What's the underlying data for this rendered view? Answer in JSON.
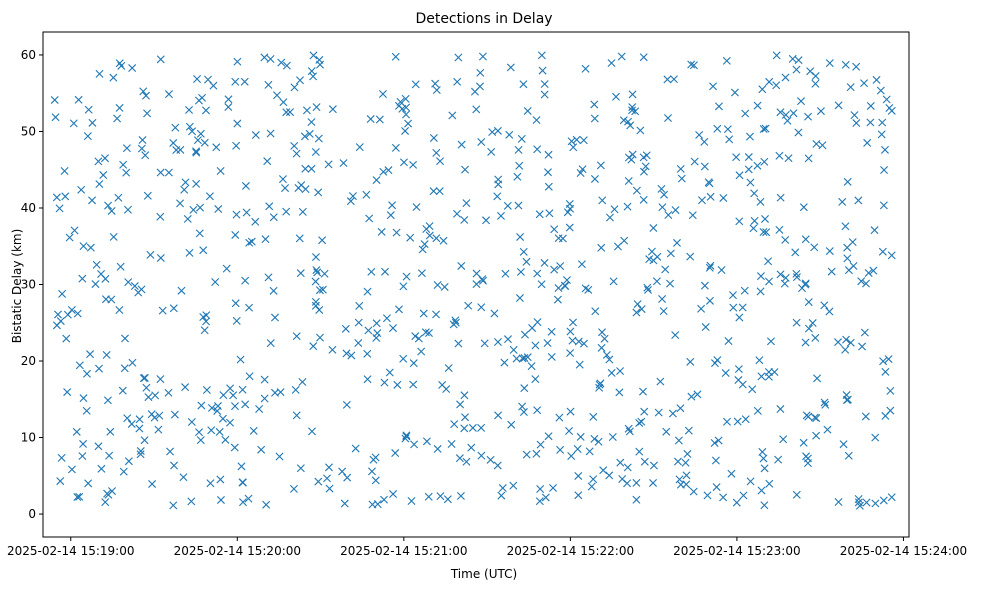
{
  "chart_data": {
    "type": "scatter",
    "title": "Detections in Delay",
    "xlabel": "Time (UTC)",
    "ylabel": "Bistatic Delay (km)",
    "marker": "x",
    "marker_color": "#1f77b4",
    "grid": false,
    "legend": "none",
    "x_is_datetime": true,
    "xlim": [
      "2025-02-14T15:18:50",
      "2025-02-14T15:24:02"
    ],
    "ylim": [
      -3,
      63
    ],
    "x_ticks": [
      "2025-02-14 15:19:00",
      "2025-02-14 15:20:00",
      "2025-02-14 15:21:00",
      "2025-02-14 15:22:00",
      "2025-02-14 15:23:00",
      "2025-02-14 15:24:00"
    ],
    "x_tick_values": [
      "2025-02-14T15:19:00",
      "2025-02-14T15:20:00",
      "2025-02-14T15:21:00",
      "2025-02-14T15:22:00",
      "2025-02-14T15:23:00",
      "2025-02-14T15:24:00"
    ],
    "y_ticks": [
      "0",
      "10",
      "20",
      "30",
      "40",
      "50",
      "60"
    ],
    "y_tick_values": [
      0,
      10,
      20,
      30,
      40,
      50,
      60
    ],
    "x_range": [
      "2025-02-14T15:18:54",
      "2025-02-14T15:23:56"
    ],
    "y_range": [
      1,
      60
    ],
    "point_count": 900
  }
}
